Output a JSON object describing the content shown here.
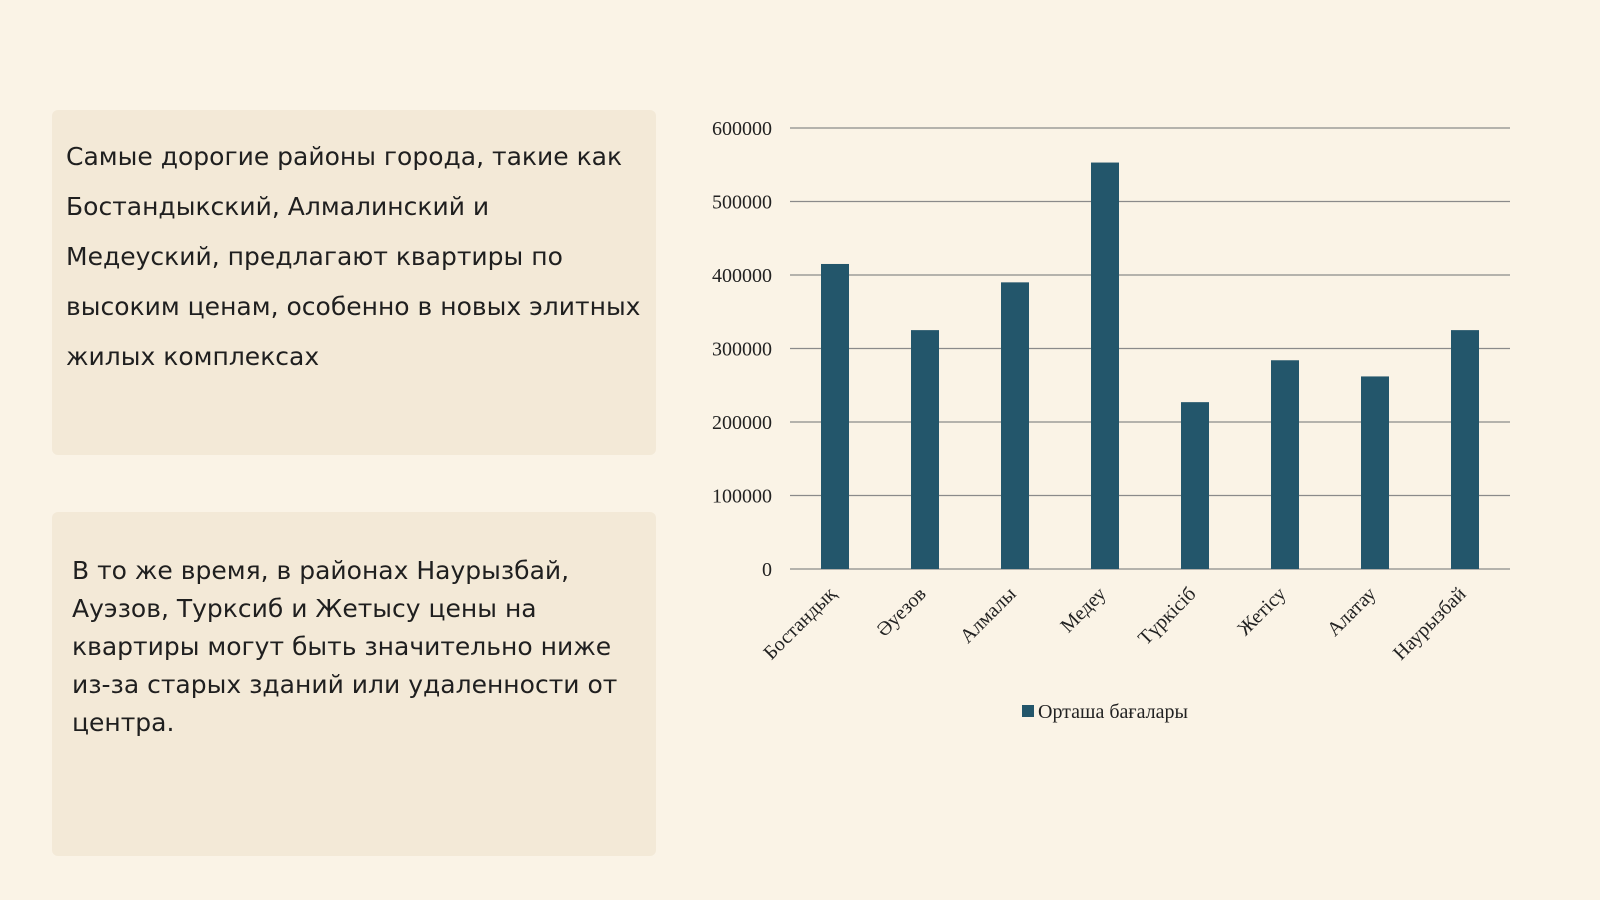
{
  "slide": {
    "paragraph_1": "Самые дорогие районы города, такие как Бостандыкский, Алмалинский и Медеуский, предлагают квартиры по высоким ценам, особенно в новых элитных жилых комплексах",
    "paragraph_2": "В то же время, в районах Наурызбай, Ауэзов, Турксиб и Жетысу цены на квартиры могут быть значительно ниже из-за старых зданий или удаленности от центра."
  },
  "chart_data": {
    "type": "bar",
    "categories": [
      "Бостандық",
      "Әуезов",
      "Алмалы",
      "Медеу",
      "Түркісіб",
      "Жетісу",
      "Алатау",
      "Наурызбай"
    ],
    "series": [
      {
        "name": "Орташа бағалары",
        "values": [
          415000,
          325000,
          390000,
          553000,
          227000,
          284000,
          262000,
          325000
        ]
      }
    ],
    "yticks": [
      0,
      100000,
      200000,
      300000,
      400000,
      500000,
      600000
    ],
    "ylim": [
      0,
      600000
    ],
    "grid": true,
    "legend_position": "bottom",
    "bar_color": "#23566b",
    "grid_color": "#8a8a8a"
  }
}
